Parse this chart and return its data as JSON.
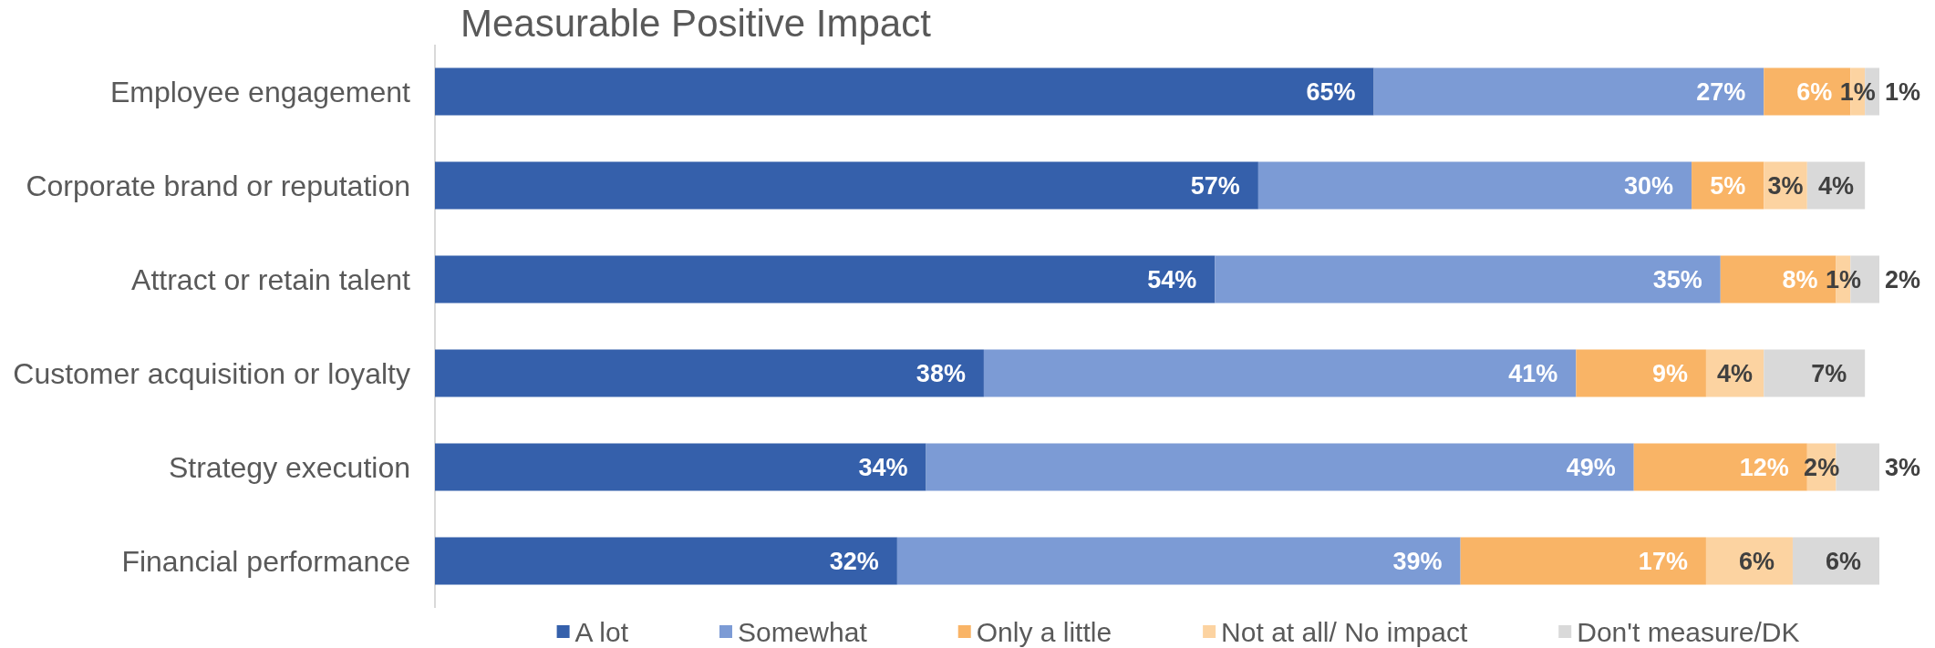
{
  "chart_data": {
    "type": "bar",
    "orientation": "horizontal",
    "stacked": true,
    "title": "Measurable Positive Impact",
    "categories": [
      "Employee engagement",
      "Corporate brand or reputation",
      "Attract or retain talent",
      "Customer acquisition or loyalty",
      "Strategy execution",
      "Financial performance"
    ],
    "series": [
      {
        "name": "A lot",
        "color": "#3560ab",
        "values": [
          65,
          57,
          54,
          38,
          34,
          32
        ],
        "value_labels": [
          "65%",
          "57%",
          "54%",
          "38%",
          "34%",
          "32%"
        ]
      },
      {
        "name": "Somewhat",
        "color": "#7c9bd5",
        "values": [
          27,
          30,
          35,
          41,
          49,
          39
        ],
        "value_labels": [
          "27%",
          "30%",
          "35%",
          "41%",
          "49%",
          "39%"
        ]
      },
      {
        "name": "Only a little",
        "color": "#f9b466",
        "values": [
          6,
          5,
          8,
          9,
          12,
          17
        ],
        "value_labels": [
          "6%",
          "5%",
          "8%",
          "9%",
          "12%",
          "17%"
        ]
      },
      {
        "name": "Not at all/ No impact",
        "color": "#fcd3a1",
        "values": [
          1,
          3,
          1,
          4,
          2,
          6
        ],
        "value_labels": [
          "1%",
          "3%",
          "1%",
          "4%",
          "2%",
          "6%"
        ]
      },
      {
        "name": "Don't measure/DK",
        "color": "#d9d9d9",
        "values": [
          1,
          4,
          2,
          7,
          3,
          6
        ],
        "value_labels": [
          "1%",
          "4%",
          "2%",
          "7%",
          "3%",
          "6%"
        ]
      }
    ],
    "xlim": [
      0,
      100
    ],
    "tick_labels": "y",
    "legend": "bottom"
  }
}
